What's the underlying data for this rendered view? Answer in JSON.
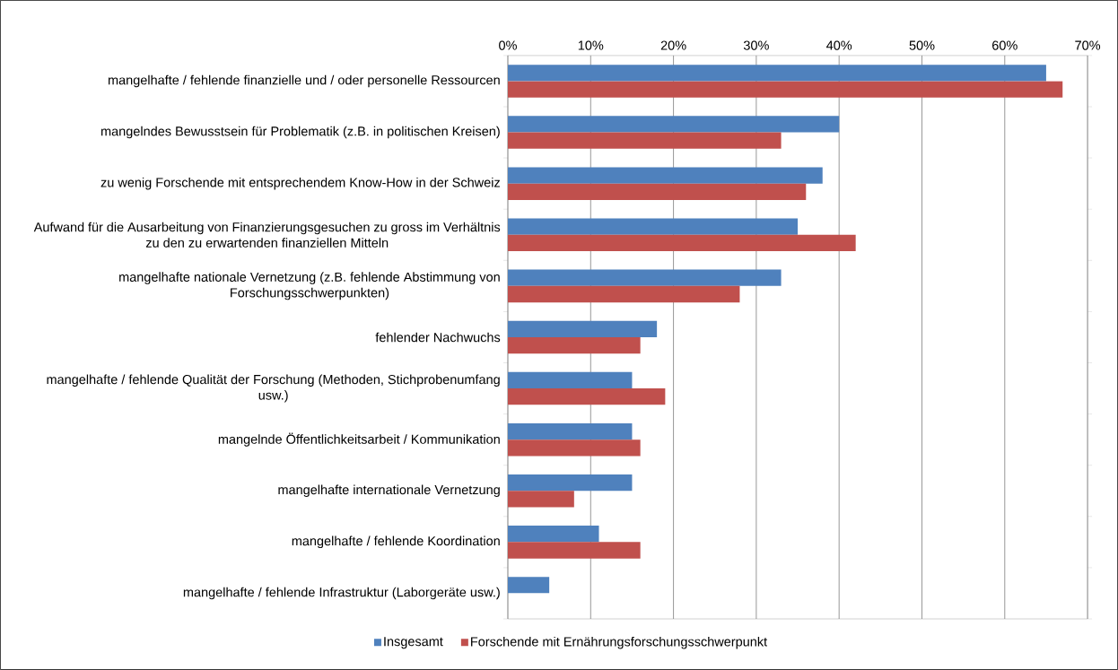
{
  "chart_data": {
    "type": "bar",
    "orientation": "horizontal",
    "categories": [
      "mangelhafte / fehlende finanzielle und / oder personelle Ressourcen",
      "mangelndes Bewusstsein für Problematik (z.B. in politischen Kreisen)",
      "zu wenig Forschende mit entsprechendem Know-How in der Schweiz",
      "Aufwand für die Ausarbeitung von Finanzierungsgesuchen zu gross im Verhältnis zu den zu erwartenden finanziellen Mitteln",
      "mangelhafte nationale Vernetzung (z.B. fehlende Abstimmung von Forschungsschwerpunkten)",
      "fehlender Nachwuchs",
      "mangelhafte / fehlende Qualität der Forschung (Methoden, Stichprobenumfang usw.)",
      "mangelnde Öffentlichkeitsarbeit / Kommunikation",
      "mangelhafte internationale Vernetzung",
      "mangelhafte / fehlende Koordination",
      "mangelhafte / fehlende Infrastruktur (Laborgeräte usw.)"
    ],
    "series": [
      {
        "name": "Insgesamt",
        "color": "#4f81bd",
        "values": [
          65,
          40,
          38,
          35,
          33,
          18,
          15,
          15,
          15,
          11,
          5
        ]
      },
      {
        "name": "Forschende mit Ernährungsforschungsschwerpunkt",
        "color": "#c0504d",
        "values": [
          67,
          33,
          36,
          42,
          28,
          16,
          19,
          16,
          8,
          16,
          null
        ]
      }
    ],
    "xlim": [
      0,
      70
    ],
    "xticks": [
      {
        "value": 0,
        "label": "0%"
      },
      {
        "value": 10,
        "label": "10%"
      },
      {
        "value": 20,
        "label": "20%"
      },
      {
        "value": 30,
        "label": "30%"
      },
      {
        "value": 40,
        "label": "40%"
      },
      {
        "value": 50,
        "label": "50%"
      },
      {
        "value": 60,
        "label": "60%"
      },
      {
        "value": 70,
        "label": "70%"
      }
    ],
    "grid": "x",
    "legend": "bottom"
  }
}
